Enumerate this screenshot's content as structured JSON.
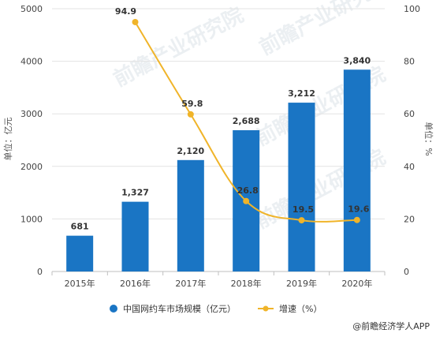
{
  "chart_data": {
    "type": "bar",
    "categories": [
      "2015年",
      "2016年",
      "2017年",
      "2018年",
      "2019年",
      "2020年"
    ],
    "series": [
      {
        "name": "中国网约车市场规模（亿元）",
        "type": "bar",
        "axis": "left",
        "color": "#1a75c4",
        "values": [
          681,
          1327,
          2120,
          2688,
          3212,
          3840
        ],
        "labels": [
          "681",
          "1,327",
          "2,120",
          "2,688",
          "3,212",
          "3,840"
        ]
      },
      {
        "name": "增速（%）",
        "type": "line",
        "axis": "right",
        "color": "#f0b429",
        "values": [
          null,
          94.9,
          59.8,
          26.8,
          19.5,
          19.6
        ],
        "labels": [
          "",
          "94.9",
          "59.8",
          "26.8",
          "19.5",
          "19.6"
        ]
      }
    ],
    "ylabel": "单位：亿元",
    "ylabel_right": "单位：%",
    "ylim": [
      0,
      5000
    ],
    "ylim_right": [
      0,
      100
    ],
    "yticks": [
      "0",
      "1000",
      "2000",
      "3000",
      "4000",
      "5000"
    ],
    "yticks_right": [
      "0",
      "20",
      "40",
      "60",
      "80",
      "100"
    ],
    "grid": true,
    "legend_position": "bottom"
  },
  "source": "@前瞻经济学人APP",
  "watermark": "前瞻产业研究院"
}
